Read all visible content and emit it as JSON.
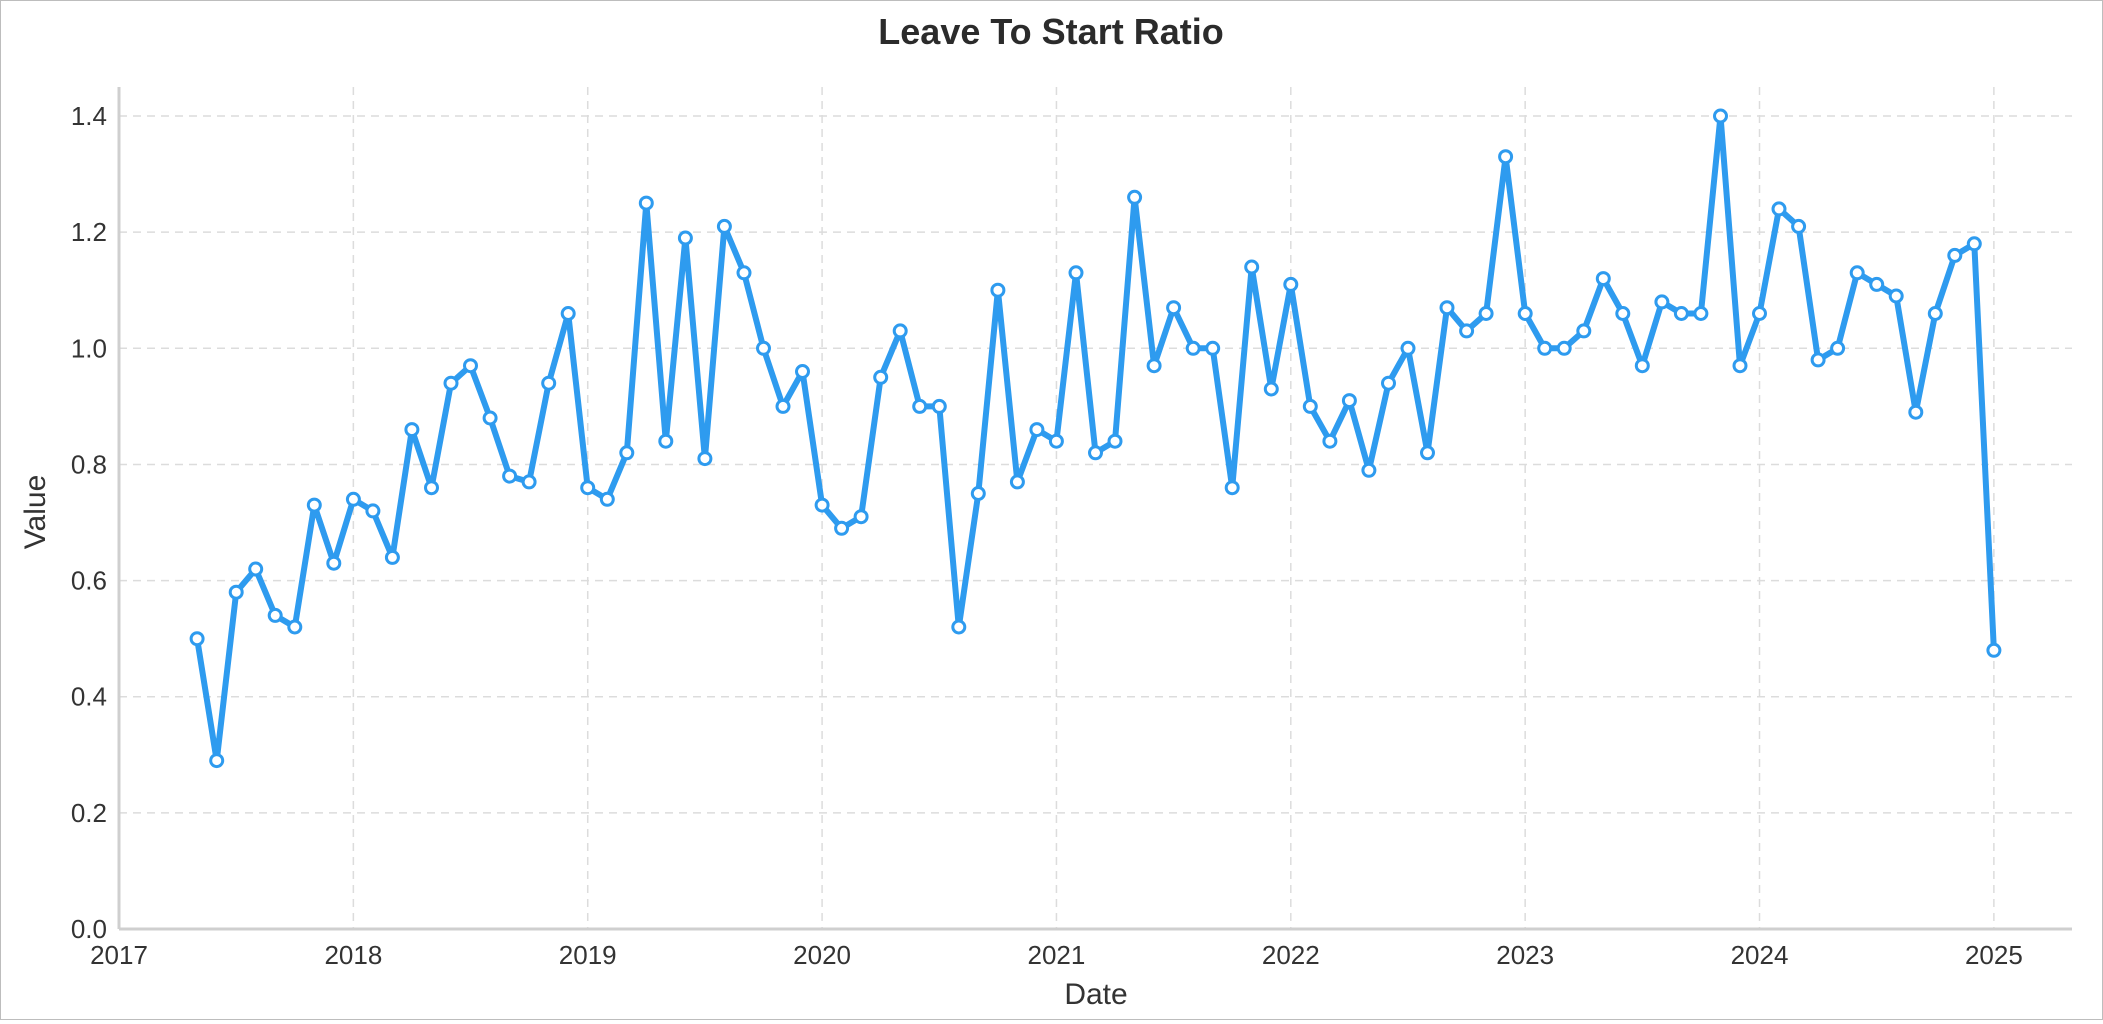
{
  "chart_data": {
    "type": "line",
    "title": "Leave To Start Ratio",
    "xlabel": "Date",
    "ylabel": "Value",
    "color": "#2E9BEF",
    "grid": true,
    "xlim": [
      "2017-01-01",
      "2025-05-01"
    ],
    "ylim": [
      0,
      1.45
    ],
    "x_ticks": [
      "2017",
      "2018",
      "2019",
      "2020",
      "2021",
      "2022",
      "2023",
      "2024",
      "2025"
    ],
    "y_ticks": [
      "0.0",
      "0.2",
      "0.4",
      "0.6",
      "0.8",
      "1.0",
      "1.2",
      "1.4"
    ],
    "series": [
      {
        "x": [
          "2017-05",
          "2017-06",
          "2017-07",
          "2017-08",
          "2017-09",
          "2017-10",
          "2017-11",
          "2017-12",
          "2018-01",
          "2018-02",
          "2018-03",
          "2018-04",
          "2018-05",
          "2018-06",
          "2018-07",
          "2018-08",
          "2018-09",
          "2018-10",
          "2018-11",
          "2018-12",
          "2019-01",
          "2019-02",
          "2019-03",
          "2019-04",
          "2019-05",
          "2019-06",
          "2019-07",
          "2019-08",
          "2019-09",
          "2019-10",
          "2019-11",
          "2019-12",
          "2020-01",
          "2020-02",
          "2020-03",
          "2020-04",
          "2020-05",
          "2020-06",
          "2020-07",
          "2020-08",
          "2020-09",
          "2020-10",
          "2020-11",
          "2020-12",
          "2021-01",
          "2021-02",
          "2021-03",
          "2021-04",
          "2021-05",
          "2021-06",
          "2021-07",
          "2021-08",
          "2021-09",
          "2021-10",
          "2021-11",
          "2021-12",
          "2022-01",
          "2022-02",
          "2022-03",
          "2022-04",
          "2022-05",
          "2022-06",
          "2022-07",
          "2022-08",
          "2022-09",
          "2022-10",
          "2022-11",
          "2022-12",
          "2023-01",
          "2023-02",
          "2023-03",
          "2023-04",
          "2023-05",
          "2023-06",
          "2023-07",
          "2023-08",
          "2023-09",
          "2023-10",
          "2023-11",
          "2023-12",
          "2024-01",
          "2024-02",
          "2024-03",
          "2024-04",
          "2024-05",
          "2024-06",
          "2024-07",
          "2024-08",
          "2024-09",
          "2024-10",
          "2024-11",
          "2024-12",
          "2025-01"
        ],
        "values": [
          0.5,
          0.29,
          0.58,
          0.62,
          0.54,
          0.52,
          0.73,
          0.63,
          0.74,
          0.72,
          0.64,
          0.86,
          0.76,
          0.94,
          0.97,
          0.88,
          0.78,
          0.77,
          0.94,
          1.06,
          0.76,
          0.74,
          0.82,
          1.25,
          0.84,
          1.19,
          0.81,
          1.21,
          1.13,
          1.0,
          0.9,
          0.96,
          0.73,
          0.69,
          0.71,
          0.95,
          1.03,
          0.9,
          0.9,
          0.52,
          0.75,
          1.1,
          0.77,
          0.86,
          0.84,
          1.13,
          0.82,
          0.84,
          1.26,
          0.97,
          1.07,
          1.0,
          1.0,
          0.76,
          1.14,
          0.93,
          1.11,
          0.9,
          0.84,
          0.91,
          0.79,
          0.94,
          1.0,
          0.82,
          1.07,
          1.03,
          1.06,
          1.33,
          1.06,
          1.0,
          1.0,
          1.03,
          1.12,
          1.06,
          0.97,
          1.08,
          1.06,
          1.06,
          1.4,
          0.97,
          1.06,
          1.24,
          1.21,
          0.98,
          1.0,
          1.13,
          1.11,
          1.09,
          0.89,
          1.06,
          1.16,
          1.18,
          0.48
        ]
      }
    ]
  }
}
